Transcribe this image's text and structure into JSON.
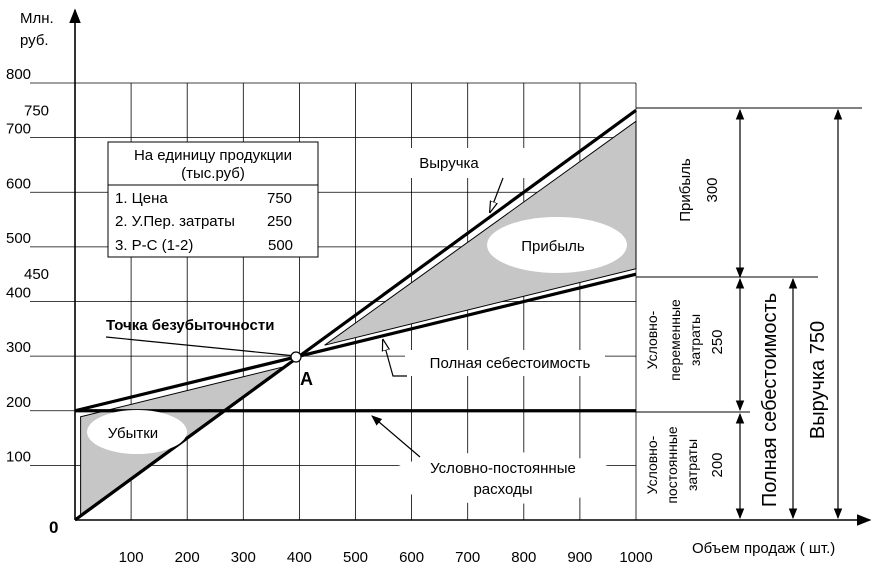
{
  "chart_data": {
    "type": "line",
    "y_unit_label_line1": "Млн.",
    "y_unit_label_line2": "руб.",
    "xlabel": "Объем продаж ( шт.)",
    "xlim": [
      0,
      1000
    ],
    "ylim": [
      0,
      800
    ],
    "x_ticks": [
      100,
      200,
      300,
      400,
      500,
      600,
      700,
      800,
      900,
      1000
    ],
    "y_ticks": [
      100,
      200,
      300,
      400,
      500,
      600,
      700,
      800
    ],
    "y_extra_ticks": [
      450,
      750
    ],
    "origin_label": "0",
    "series": [
      {
        "name": "Выручка",
        "x": [
          0,
          1000
        ],
        "y": [
          0,
          750
        ]
      },
      {
        "name": "Полная себестоимость",
        "x": [
          0,
          1000
        ],
        "y": [
          200,
          450
        ]
      },
      {
        "name": "Условно-постоянные расходы",
        "x": [
          0,
          1000
        ],
        "y": [
          200,
          200
        ]
      }
    ],
    "break_even": {
      "label": "Точка безубыточности",
      "point_label": "A",
      "x": 400,
      "y": 300
    },
    "regions": {
      "loss": "Убытки",
      "profit": "Прибыль"
    },
    "labels": {
      "revenue": "Выручка",
      "full_cost": "Полная себестоимость",
      "fixed_cost_1": "Условно-постоянные",
      "fixed_cost_2": "расходы"
    },
    "info_box": {
      "title_1": "На единицу продукции",
      "title_2": "(тыс.руб)",
      "rows": [
        {
          "label": "1. Цена",
          "value": "750"
        },
        {
          "label": "2. У.Пер. затраты",
          "value": "250"
        },
        {
          "label": "3. Р-С (1-2)",
          "value": "500"
        }
      ]
    },
    "right_brackets": {
      "profit": {
        "text": "Прибыль",
        "value": "300"
      },
      "variable": {
        "line_1": "Условно-",
        "line_2": "переменные",
        "line_3": "затраты",
        "value": "250"
      },
      "fixed": {
        "line_1": "Условно-",
        "line_2": "постоянные",
        "line_3": "затраты",
        "value": "200"
      },
      "full_cost": "Полная себестоимость",
      "revenue": "Выручка 750"
    }
  }
}
